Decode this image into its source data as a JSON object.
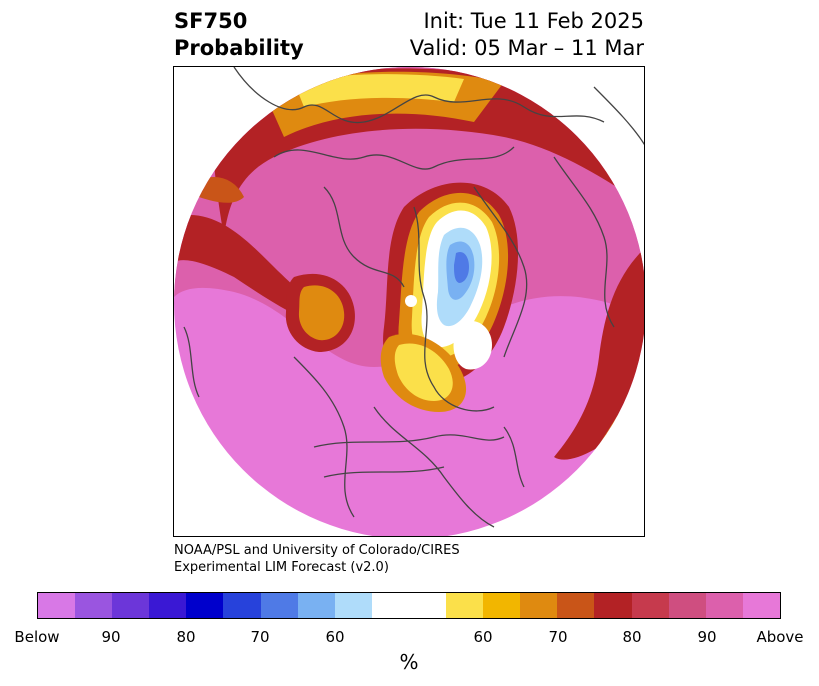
{
  "title": {
    "left_line1": "SF750",
    "left_line2": "Probability",
    "right_line1": "Init: Tue 11 Feb 2025",
    "right_line2": "Valid: 05 Mar – 11 Mar"
  },
  "credit": {
    "line1": "NOAA/PSL and University of Colorado/CIRES",
    "line2": "Experimental LIM Forecast (v2.0)"
  },
  "colorbar": {
    "colors": [
      "#d878e6",
      "#9a55e0",
      "#6c36d9",
      "#3a18d4",
      "#0000cc",
      "#2742db",
      "#4f7ae6",
      "#79b1f2",
      "#afdcfa",
      "#ffffff",
      "#ffffff",
      "#fbe04a",
      "#f2b600",
      "#df8a10",
      "#c95518",
      "#b32225",
      "#c63a4d",
      "#cf4e80",
      "#dc60ac",
      "#e778d8"
    ],
    "labels": [
      "Below",
      "90",
      "80",
      "70",
      "60",
      "60",
      "70",
      "80",
      "90",
      "Above"
    ],
    "units": "%"
  },
  "map": {
    "background_colors": {
      "above_high": "#e778d8",
      "magenta": "#dc60ac",
      "rose": "#cf4e80",
      "crimson": "#b32225",
      "dark_orange": "#c95518",
      "orange": "#df8a10",
      "gold": "#f2b600",
      "yellow": "#fbe04a",
      "light_blue": "#afdcfa",
      "blue": "#79b1f2",
      "mid_blue": "#4f7ae6",
      "coast": "#444444"
    }
  }
}
